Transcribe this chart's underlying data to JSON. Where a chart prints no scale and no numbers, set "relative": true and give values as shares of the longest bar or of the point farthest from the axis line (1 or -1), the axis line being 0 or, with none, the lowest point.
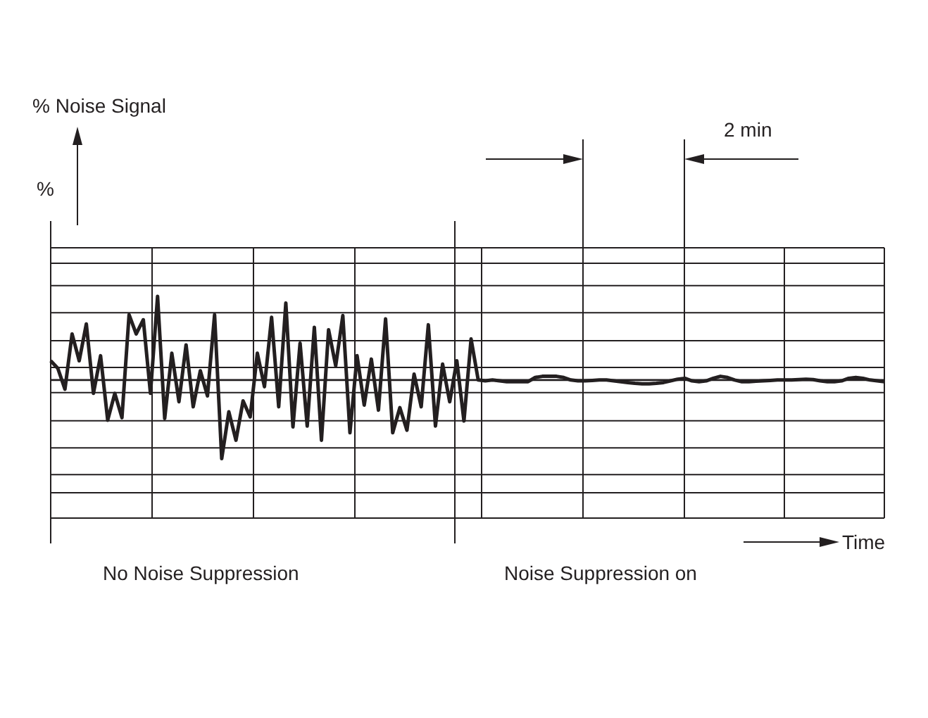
{
  "chart_data": {
    "type": "line",
    "relative": true,
    "xlabel": "Time",
    "grid": true,
    "annotations": [
      "% Noise Signal",
      "%",
      "2 min",
      "No Noise Suppression",
      "Noise Suppression on"
    ],
    "categories": [
      null,
      null,
      null,
      null,
      null,
      null,
      null,
      null,
      null,
      null,
      null,
      null,
      null,
      null,
      null,
      null,
      null,
      null,
      null,
      null,
      null,
      null,
      null,
      null,
      null,
      null,
      null,
      null,
      null,
      null,
      null,
      null,
      null,
      null,
      null,
      null,
      null,
      null,
      null,
      null,
      null,
      null,
      null,
      null,
      null,
      null,
      null,
      null,
      null,
      null,
      null,
      null,
      null,
      null,
      null,
      null,
      null,
      null,
      null,
      null,
      null,
      null,
      null,
      null,
      null,
      null,
      null,
      null,
      null,
      null,
      null,
      null,
      null,
      null,
      null,
      null,
      null,
      null,
      null,
      null,
      null,
      null,
      null,
      null,
      null,
      null,
      null,
      null,
      null,
      null,
      null,
      null,
      null,
      null,
      null,
      null,
      null,
      null,
      null,
      null,
      null,
      null,
      null,
      null,
      null,
      null,
      null,
      null,
      null,
      null,
      null,
      null,
      null,
      null,
      null,
      null,
      null,
      null
    ],
    "series": [
      {
        "color": "#231f20",
        "values": [
          0.23,
          0.14,
          -0.11,
          0.55,
          0.23,
          0.67,
          -0.16,
          0.29,
          -0.48,
          -0.16,
          -0.45,
          0.78,
          0.55,
          0.72,
          -0.16,
          1,
          -0.46,
          0.32,
          -0.26,
          0.42,
          -0.32,
          0.11,
          -0.19,
          0.78,
          -0.94,
          -0.38,
          -0.72,
          -0.25,
          -0.44,
          0.32,
          -0.08,
          0.75,
          -0.32,
          0.92,
          -0.56,
          0.44,
          -0.55,
          0.63,
          -0.72,
          0.6,
          0.17,
          0.77,
          -0.63,
          0.29,
          -0.3,
          0.25,
          -0.36,
          0.73,
          -0.63,
          -0.33,
          -0.6,
          0.07,
          -0.32,
          0.66,
          -0.55,
          0.19,
          -0.26,
          0.23,
          -0.49,
          0.49,
          0,
          -0.01,
          0,
          -0.01,
          -0.02,
          -0.02,
          -0.02,
          -0.02,
          0.03,
          0.044,
          0.044,
          0.044,
          0.03,
          0,
          -0.01,
          -0.01,
          -0.005,
          0,
          0,
          -0.01,
          -0.02,
          -0.03,
          -0.04,
          -0.045,
          -0.045,
          -0.04,
          -0.03,
          -0.01,
          0.01,
          0.02,
          -0.01,
          -0.02,
          -0.01,
          0.02,
          0.044,
          0.03,
          0,
          -0.02,
          -0.02,
          -0.015,
          -0.01,
          -0.005,
          0,
          0,
          0,
          0.005,
          0.01,
          0.005,
          -0.01,
          -0.02,
          -0.02,
          -0.01,
          0.02,
          0.03,
          0.02,
          0,
          -0.01,
          -0.02
        ]
      }
    ]
  }
}
